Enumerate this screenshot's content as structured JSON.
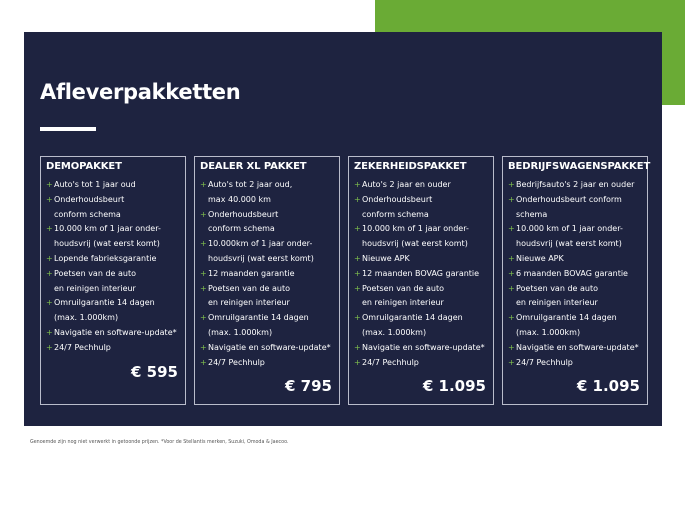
{
  "title": "Afleverpakketten",
  "colors": {
    "panel": "#1e2340",
    "accent": "#6aab35",
    "plus": "#7fbf4d"
  },
  "packages": [
    {
      "name": "DEMOPAKKET",
      "price": "€ 595",
      "items": [
        [
          "Auto's tot 1 jaar oud"
        ],
        [
          "Onderhoudsbeurt",
          "conform schema"
        ],
        [
          "10.000 km of 1 jaar onder-",
          "houdsvrij (wat eerst komt)"
        ],
        [
          "Lopende fabrieksgarantie"
        ],
        [
          "Poetsen van de auto",
          "en reinigen interieur"
        ],
        [
          "Omruilgarantie 14 dagen",
          "(max. 1.000km)"
        ],
        [
          "Navigatie en software-update*"
        ],
        [
          "24/7 Pechhulp"
        ]
      ]
    },
    {
      "name": "DEALER XL PAKKET",
      "price": "€ 795",
      "items": [
        [
          "Auto's tot 2 jaar oud,",
          "max 40.000 km"
        ],
        [
          "Onderhoudsbeurt",
          "conform schema"
        ],
        [
          "10.000km of 1 jaar onder-",
          "houdsvrij (wat eerst komt)"
        ],
        [
          "12 maanden garantie"
        ],
        [
          "Poetsen van de auto",
          "en reinigen interieur"
        ],
        [
          "Omruilgarantie 14 dagen",
          "(max. 1.000km)"
        ],
        [
          "Navigatie en software-update*"
        ],
        [
          "24/7 Pechhulp"
        ]
      ]
    },
    {
      "name": "ZEKERHEIDSPAKKET",
      "price": "€ 1.095",
      "items": [
        [
          "Auto's 2 jaar en ouder"
        ],
        [
          "Onderhoudsbeurt",
          "conform schema"
        ],
        [
          "10.000 km of 1 jaar onder-",
          "houdsvrij (wat eerst komt)"
        ],
        [
          "Nieuwe APK"
        ],
        [
          "12 maanden BOVAG garantie"
        ],
        [
          "Poetsen van de auto",
          "en reinigen interieur"
        ],
        [
          "Omruilgarantie 14 dagen",
          "(max. 1.000km)"
        ],
        [
          "Navigatie en software-update*"
        ],
        [
          "24/7 Pechhulp"
        ]
      ]
    },
    {
      "name": "BEDRIJFSWAGENSPAKKET",
      "price": "€ 1.095",
      "items": [
        [
          "Bedrijfsauto's 2 jaar en ouder"
        ],
        [
          "Onderhoudsbeurt conform",
          "schema"
        ],
        [
          "10.000 km of 1 jaar onder-",
          "houdsvrij (wat eerst komt)"
        ],
        [
          "Nieuwe APK"
        ],
        [
          "6 maanden BOVAG garantie"
        ],
        [
          "Poetsen van de auto",
          "en reinigen interieur"
        ],
        [
          "Omruilgarantie 14 dagen",
          "(max. 1.000km)"
        ],
        [
          "Navigatie en software-update*"
        ],
        [
          "24/7 Pechhulp"
        ]
      ]
    }
  ],
  "footnote": "Genoemde zijn nog niet verwerkt in getoonde prijzen. *Voor de Stellantis merken, Suzuki, Omoda & Jaecoo."
}
